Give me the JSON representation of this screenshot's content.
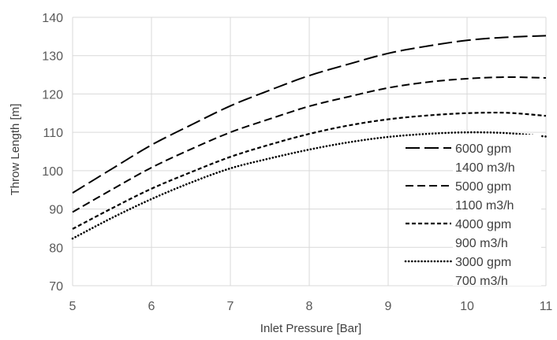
{
  "chart_data": {
    "type": "line",
    "title": "",
    "xlabel": "Inlet Pressure [Bar]",
    "ylabel": "Throw Length [m]",
    "xlim": [
      5,
      11
    ],
    "ylim": [
      70,
      140
    ],
    "xticks": [
      5,
      6,
      7,
      8,
      9,
      10,
      11
    ],
    "yticks": [
      70,
      80,
      90,
      100,
      110,
      120,
      130,
      140
    ],
    "grid": true,
    "legend_position": "right",
    "x": [
      5,
      5.5,
      6,
      6.5,
      7,
      7.5,
      8,
      8.5,
      9,
      9.5,
      10,
      10.5,
      11
    ],
    "series": [
      {
        "name": "6000 gpm",
        "name_line2": "1400 m3/h",
        "dash": "long-dash",
        "values": [
          94.2,
          100.5,
          106.7,
          111.9,
          116.9,
          121.0,
          124.8,
          127.8,
          130.6,
          132.5,
          134.0,
          134.8,
          135.2
        ]
      },
      {
        "name": "5000 gpm",
        "name_line2": "1100 m3/h",
        "dash": "dash",
        "values": [
          89.2,
          95.1,
          100.8,
          105.6,
          110.0,
          113.5,
          116.8,
          119.3,
          121.6,
          123.1,
          124.0,
          124.4,
          124.2
        ]
      },
      {
        "name": "4000 gpm",
        "name_line2": "900 m3/h",
        "dash": "short-dash",
        "values": [
          84.8,
          90.2,
          95.3,
          99.6,
          103.6,
          106.8,
          109.6,
          111.8,
          113.4,
          114.4,
          115.0,
          115.1,
          114.3
        ]
      },
      {
        "name": "3000 gpm",
        "name_line2": "700 m3/h",
        "dash": "dot",
        "values": [
          82.3,
          87.7,
          92.6,
          96.9,
          100.6,
          103.2,
          105.5,
          107.4,
          108.8,
          109.6,
          110.0,
          109.8,
          108.9
        ]
      }
    ],
    "colors": {
      "line": "#000000",
      "grid": "#d9d9d9",
      "tick_text": "#595959",
      "axis_title": "#404040"
    }
  }
}
